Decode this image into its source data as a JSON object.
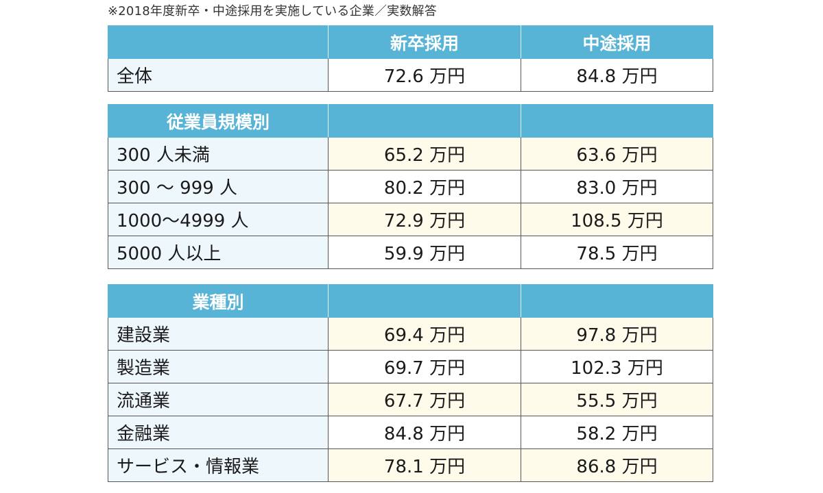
{
  "note": "※2018年度新卒・中途採用を実施している企業／実数解答",
  "columns": {
    "label": "",
    "new_grad": "新卒採用",
    "mid_career": "中途採用"
  },
  "overall": {
    "label": "全体",
    "new_grad": "72.6 万円",
    "mid_career": "84.8 万円"
  },
  "by_size": {
    "header": "従業員規模別",
    "rows": [
      {
        "label": "300 人未満",
        "new_grad": "65.2 万円",
        "mid_career": "63.6 万円"
      },
      {
        "label": "300 ～ 999 人",
        "new_grad": "80.2 万円",
        "mid_career": "83.0 万円"
      },
      {
        "label": "1000～4999 人",
        "new_grad": "72.9 万円",
        "mid_career": "108.5 万円"
      },
      {
        "label": "5000 人以上",
        "new_grad": "59.9 万円",
        "mid_career": "78.5 万円"
      }
    ]
  },
  "by_industry": {
    "header": "業種別",
    "rows": [
      {
        "label": "建設業",
        "new_grad": "69.4 万円",
        "mid_career": "97.8 万円"
      },
      {
        "label": "製造業",
        "new_grad": "69.7 万円",
        "mid_career": "102.3 万円"
      },
      {
        "label": "流通業",
        "new_grad": "67.7 万円",
        "mid_career": "55.5 万円"
      },
      {
        "label": "金融業",
        "new_grad": "84.8 万円",
        "mid_career": "58.2 万円"
      },
      {
        "label": "サービス・情報業",
        "new_grad": "78.1 万円",
        "mid_career": "86.8 万円"
      }
    ]
  },
  "colors": {
    "header_bg": "#58b4d6",
    "label_bg": "#eef7fc",
    "alt_value_bg": "#fefbea",
    "border": "#555555"
  }
}
